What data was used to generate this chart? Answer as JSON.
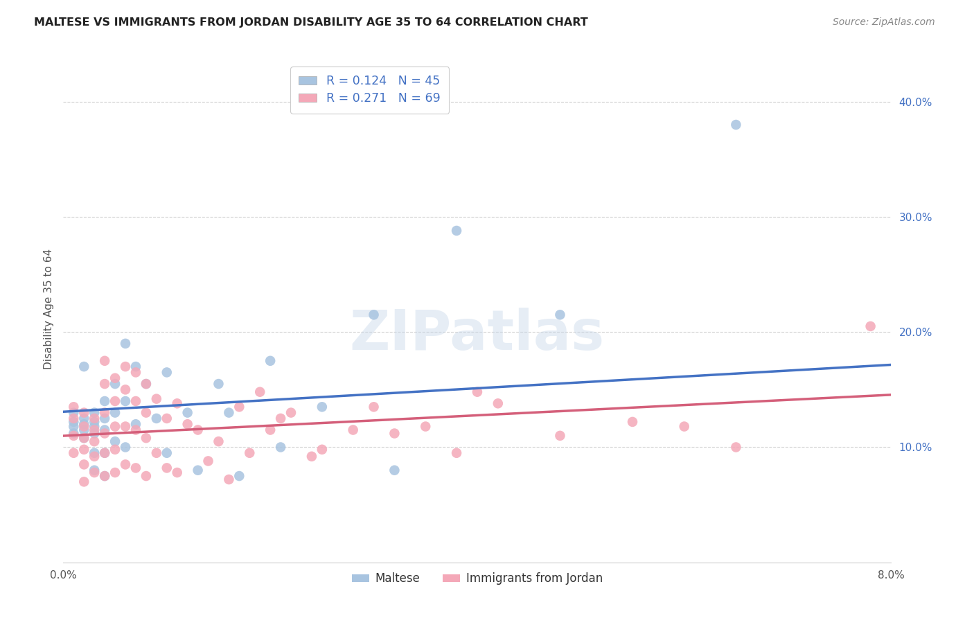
{
  "title": "MALTESE VS IMMIGRANTS FROM JORDAN DISABILITY AGE 35 TO 64 CORRELATION CHART",
  "source": "Source: ZipAtlas.com",
  "ylabel": "Disability Age 35 to 64",
  "yticks": [
    "10.0%",
    "20.0%",
    "30.0%",
    "40.0%"
  ],
  "ytick_values": [
    0.1,
    0.2,
    0.3,
    0.4
  ],
  "xlim": [
    0.0,
    0.08
  ],
  "ylim": [
    0.0,
    0.44
  ],
  "legend_label1": "Maltese",
  "legend_label2": "Immigrants from Jordan",
  "r1": 0.124,
  "n1": 45,
  "r2": 0.271,
  "n2": 69,
  "color_blue": "#a8c4e0",
  "color_pink": "#f4a8b8",
  "line_blue": "#4472c4",
  "line_pink": "#d45f7a",
  "watermark": "ZIPatlas",
  "maltese_x": [
    0.001,
    0.001,
    0.001,
    0.001,
    0.002,
    0.002,
    0.002,
    0.002,
    0.002,
    0.003,
    0.003,
    0.003,
    0.003,
    0.003,
    0.003,
    0.004,
    0.004,
    0.004,
    0.004,
    0.004,
    0.005,
    0.005,
    0.005,
    0.006,
    0.006,
    0.006,
    0.007,
    0.007,
    0.008,
    0.009,
    0.01,
    0.01,
    0.012,
    0.013,
    0.015,
    0.016,
    0.017,
    0.02,
    0.021,
    0.025,
    0.03,
    0.032,
    0.038,
    0.048,
    0.065
  ],
  "maltese_y": [
    0.13,
    0.122,
    0.118,
    0.112,
    0.125,
    0.12,
    0.115,
    0.108,
    0.17,
    0.13,
    0.122,
    0.118,
    0.112,
    0.095,
    0.08,
    0.14,
    0.125,
    0.115,
    0.095,
    0.075,
    0.155,
    0.13,
    0.105,
    0.19,
    0.14,
    0.1,
    0.17,
    0.12,
    0.155,
    0.125,
    0.165,
    0.095,
    0.13,
    0.08,
    0.155,
    0.13,
    0.075,
    0.175,
    0.1,
    0.135,
    0.215,
    0.08,
    0.288,
    0.215,
    0.38
  ],
  "jordan_x": [
    0.001,
    0.001,
    0.001,
    0.001,
    0.002,
    0.002,
    0.002,
    0.002,
    0.002,
    0.002,
    0.003,
    0.003,
    0.003,
    0.003,
    0.003,
    0.004,
    0.004,
    0.004,
    0.004,
    0.004,
    0.004,
    0.005,
    0.005,
    0.005,
    0.005,
    0.005,
    0.006,
    0.006,
    0.006,
    0.006,
    0.007,
    0.007,
    0.007,
    0.007,
    0.008,
    0.008,
    0.008,
    0.008,
    0.009,
    0.009,
    0.01,
    0.01,
    0.011,
    0.011,
    0.012,
    0.013,
    0.014,
    0.015,
    0.016,
    0.017,
    0.018,
    0.019,
    0.02,
    0.021,
    0.022,
    0.024,
    0.025,
    0.028,
    0.03,
    0.032,
    0.035,
    0.038,
    0.04,
    0.042,
    0.048,
    0.055,
    0.06,
    0.065,
    0.078
  ],
  "jordan_y": [
    0.135,
    0.125,
    0.11,
    0.095,
    0.13,
    0.118,
    0.108,
    0.098,
    0.085,
    0.07,
    0.125,
    0.115,
    0.105,
    0.092,
    0.078,
    0.175,
    0.155,
    0.13,
    0.112,
    0.095,
    0.075,
    0.16,
    0.14,
    0.118,
    0.098,
    0.078,
    0.17,
    0.15,
    0.118,
    0.085,
    0.165,
    0.14,
    0.115,
    0.082,
    0.155,
    0.13,
    0.108,
    0.075,
    0.142,
    0.095,
    0.125,
    0.082,
    0.138,
    0.078,
    0.12,
    0.115,
    0.088,
    0.105,
    0.072,
    0.135,
    0.095,
    0.148,
    0.115,
    0.125,
    0.13,
    0.092,
    0.098,
    0.115,
    0.135,
    0.112,
    0.118,
    0.095,
    0.148,
    0.138,
    0.11,
    0.122,
    0.118,
    0.1,
    0.205
  ]
}
